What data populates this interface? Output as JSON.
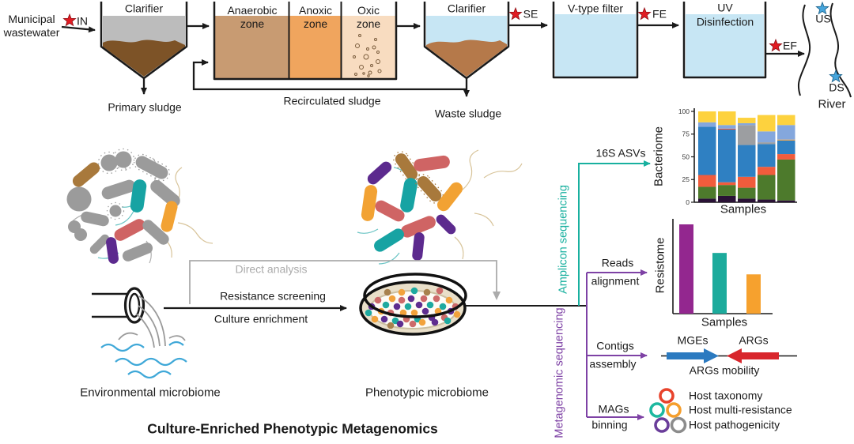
{
  "process_flow": {
    "influent_label": "Municipal wastewater",
    "in_label": "IN",
    "clarifier1_label": "Clarifier",
    "primary_sludge_label": "Primary sludge",
    "zone1_label": "Anaerobic zone",
    "zone2_label": "Anoxic zone",
    "zone3_label": "Oxic zone",
    "recirculated_sludge_label": "Recirculated sludge",
    "clarifier2_label": "Clarifier",
    "waste_sludge_label": "Waste sludge",
    "se_label": "SE",
    "filter_label": "V-type filter",
    "fe_label": "FE",
    "uv_label_line1": "UV",
    "uv_label_line2": "Disinfection",
    "ef_label": "EF",
    "us_label": "US",
    "ds_label": "DS",
    "river_label": "River"
  },
  "workflow": {
    "environmental_label": "Environmental microbiome",
    "phenotypic_label": "Phenotypic microbiome",
    "direct_analysis_label": "Direct analysis",
    "resistance_screening_label": "Resistance screening",
    "culture_enrichment_label": "Culture enrichment",
    "title": "Culture-Enriched Phenotypic Metagenomics",
    "amplicon_label": "Amplicon sequencing",
    "metagenomic_label": "Metagenomic sequencing",
    "branch_asv_label": "16S ASVs",
    "branch_reads_line1": "Reads",
    "branch_reads_line2": "alignment",
    "branch_contigs_line1": "Contigs",
    "branch_contigs_line2": "assembly",
    "branch_mags_line1": "MAGs",
    "branch_mags_line2": "binning",
    "gene_mges_label": "MGEs",
    "gene_args_label": "ARGs",
    "gene_caption": "ARGs mobility",
    "host_output_1": "Host taxonomy",
    "host_output_2": "Host multi-resistance",
    "host_output_3": "Host pathogenicity"
  },
  "chart_data": [
    {
      "id": "bacteriome",
      "type": "stacked-bar",
      "ylabel": "Bacteriome",
      "xlabel": "Samples",
      "ylim": [
        0,
        100
      ],
      "yticks": [
        0,
        25,
        50,
        75,
        100
      ],
      "categories_note": "5 unlabeled sample bars, relative abundance (%)",
      "bars": [
        {
          "segments": [
            {
              "c": "#2a1236",
              "v": 4
            },
            {
              "c": "#4d7a2c",
              "v": 13
            },
            {
              "c": "#f15c3c",
              "v": 13
            },
            {
              "c": "#2f80c2",
              "v": 53
            },
            {
              "c": "#84a7dd",
              "v": 5
            },
            {
              "c": "#fdd23e",
              "v": 12
            }
          ]
        },
        {
          "segments": [
            {
              "c": "#2a1236",
              "v": 7
            },
            {
              "c": "#4d7a2c",
              "v": 12
            },
            {
              "c": "#f15c3c",
              "v": 3
            },
            {
              "c": "#2f80c2",
              "v": 58
            },
            {
              "c": "#f15c3c",
              "v": 1
            },
            {
              "c": "#84a7dd",
              "v": 4
            },
            {
              "c": "#fdd23e",
              "v": 15
            }
          ]
        },
        {
          "segments": [
            {
              "c": "#2a1236",
              "v": 4
            },
            {
              "c": "#4d7a2c",
              "v": 12
            },
            {
              "c": "#f15c3c",
              "v": 12
            },
            {
              "c": "#2f80c2",
              "v": 35
            },
            {
              "c": "#9c9ea1",
              "v": 22
            },
            {
              "c": "#84a7dd",
              "v": 2
            },
            {
              "c": "#fdd23e",
              "v": 6
            }
          ]
        },
        {
          "segments": [
            {
              "c": "#2a1236",
              "v": 3
            },
            {
              "c": "#4d7a2c",
              "v": 27
            },
            {
              "c": "#f15c3c",
              "v": 9
            },
            {
              "c": "#2f80c2",
              "v": 25
            },
            {
              "c": "#9c9ea1",
              "v": 2
            },
            {
              "c": "#84a7dd",
              "v": 12
            },
            {
              "c": "#fdd23e",
              "v": 18
            }
          ]
        },
        {
          "segments": [
            {
              "c": "#2a1236",
              "v": 2
            },
            {
              "c": "#4d7a2c",
              "v": 45
            },
            {
              "c": "#f15c3c",
              "v": 6
            },
            {
              "c": "#2f80c2",
              "v": 15
            },
            {
              "c": "#f2a03d",
              "v": 1
            },
            {
              "c": "#84a7dd",
              "v": 16
            },
            {
              "c": "#fdd23e",
              "v": 11
            }
          ]
        }
      ]
    },
    {
      "id": "resistome",
      "type": "bar",
      "ylabel": "Resistome",
      "xlabel": "Samples",
      "values": [
        100,
        68,
        44
      ],
      "colors": [
        "#93278f",
        "#1cab9c",
        "#f6a12e"
      ]
    }
  ],
  "colors": {
    "amplicon_teal": "#18b09f",
    "metagenomic_purple": "#7e42a5",
    "sample_star_red": "#e11b22",
    "river_star_blue": "#45a5dc",
    "mge_arrow_blue": "#2b7ac0",
    "arg_arrow_red": "#d8262c",
    "host_ring_colors": [
      "#e8432c",
      "#1db8a0",
      "#f59e2c",
      "#6a3d9a",
      "#8c8c8c"
    ]
  }
}
